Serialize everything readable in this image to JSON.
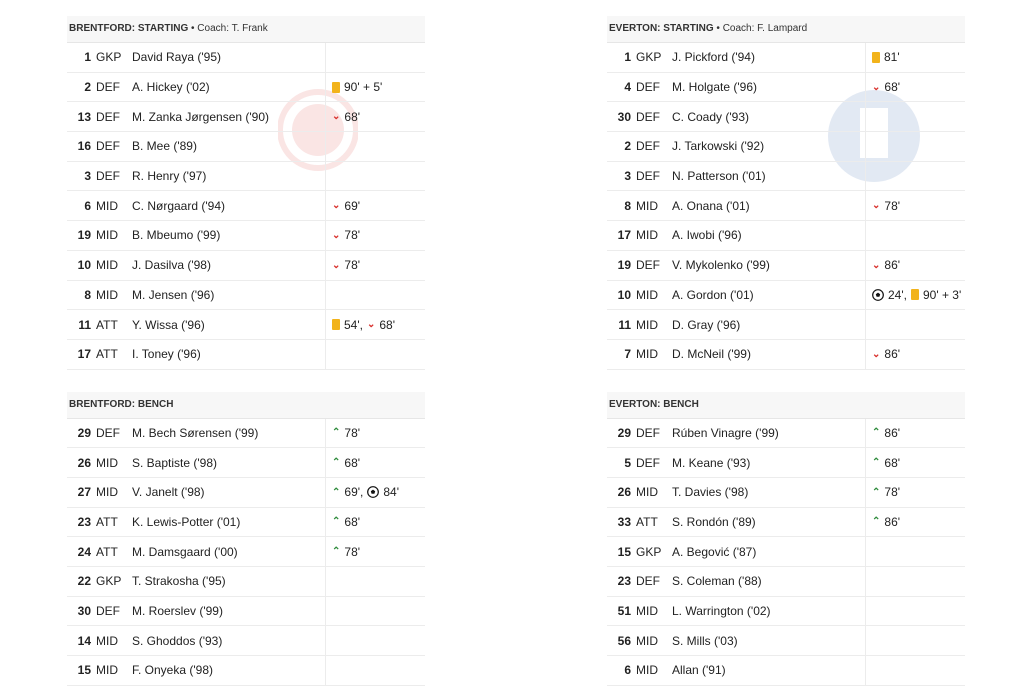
{
  "home": {
    "starting_title": "BRENTFORD: STARTING",
    "coach": "• Coach: T. Frank",
    "bench_title": "BRENTFORD: BENCH",
    "starting": [
      {
        "num": "1",
        "pos": "GKP",
        "name": "David Raya ('95)",
        "events": []
      },
      {
        "num": "2",
        "pos": "DEF",
        "name": "A. Hickey ('02)",
        "events": [
          {
            "type": "yellow",
            "text": "90' + 5'"
          }
        ]
      },
      {
        "num": "13",
        "pos": "DEF",
        "name": "M. Zanka Jørgensen ('90)",
        "events": [
          {
            "type": "sub-off",
            "text": "68'"
          }
        ]
      },
      {
        "num": "16",
        "pos": "DEF",
        "name": "B. Mee ('89)",
        "events": []
      },
      {
        "num": "3",
        "pos": "DEF",
        "name": "R. Henry ('97)",
        "events": []
      },
      {
        "num": "6",
        "pos": "MID",
        "name": "C. Nørgaard ('94)",
        "events": [
          {
            "type": "sub-off",
            "text": "69'"
          }
        ]
      },
      {
        "num": "19",
        "pos": "MID",
        "name": "B. Mbeumo ('99)",
        "events": [
          {
            "type": "sub-off",
            "text": "78'"
          }
        ]
      },
      {
        "num": "10",
        "pos": "MID",
        "name": "J. Dasilva ('98)",
        "events": [
          {
            "type": "sub-off",
            "text": "78'"
          }
        ]
      },
      {
        "num": "8",
        "pos": "MID",
        "name": "M. Jensen ('96)",
        "events": []
      },
      {
        "num": "11",
        "pos": "ATT",
        "name": "Y. Wissa ('96)",
        "events": [
          {
            "type": "yellow",
            "text": "54',"
          },
          {
            "type": "sub-off",
            "text": "68'"
          }
        ]
      },
      {
        "num": "17",
        "pos": "ATT",
        "name": "I. Toney ('96)",
        "events": []
      }
    ],
    "bench": [
      {
        "num": "29",
        "pos": "DEF",
        "name": "M. Bech Sørensen ('99)",
        "events": [
          {
            "type": "sub-on",
            "text": "78'"
          }
        ]
      },
      {
        "num": "26",
        "pos": "MID",
        "name": "S. Baptiste ('98)",
        "events": [
          {
            "type": "sub-on",
            "text": "68'"
          }
        ]
      },
      {
        "num": "27",
        "pos": "MID",
        "name": "V. Janelt ('98)",
        "events": [
          {
            "type": "sub-on",
            "text": "69',"
          },
          {
            "type": "goal",
            "text": "84'"
          }
        ]
      },
      {
        "num": "23",
        "pos": "ATT",
        "name": "K. Lewis-Potter ('01)",
        "events": [
          {
            "type": "sub-on",
            "text": "68'"
          }
        ]
      },
      {
        "num": "24",
        "pos": "ATT",
        "name": "M. Damsgaard ('00)",
        "events": [
          {
            "type": "sub-on",
            "text": "78'"
          }
        ]
      },
      {
        "num": "22",
        "pos": "GKP",
        "name": "T. Strakosha ('95)",
        "events": []
      },
      {
        "num": "30",
        "pos": "DEF",
        "name": "M. Roerslev ('99)",
        "events": []
      },
      {
        "num": "14",
        "pos": "MID",
        "name": "S. Ghoddos ('93)",
        "events": []
      },
      {
        "num": "15",
        "pos": "MID",
        "name": "F. Onyeka ('98)",
        "events": []
      }
    ]
  },
  "away": {
    "starting_title": "EVERTON: STARTING",
    "coach": "• Coach: F. Lampard",
    "bench_title": "EVERTON: BENCH",
    "starting": [
      {
        "num": "1",
        "pos": "GKP",
        "name": "J. Pickford ('94)",
        "events": [
          {
            "type": "yellow",
            "text": "81'"
          }
        ]
      },
      {
        "num": "4",
        "pos": "DEF",
        "name": "M. Holgate ('96)",
        "events": [
          {
            "type": "sub-off",
            "text": "68'"
          }
        ]
      },
      {
        "num": "30",
        "pos": "DEF",
        "name": "C. Coady ('93)",
        "events": []
      },
      {
        "num": "2",
        "pos": "DEF",
        "name": "J. Tarkowski ('92)",
        "events": []
      },
      {
        "num": "3",
        "pos": "DEF",
        "name": "N. Patterson ('01)",
        "events": []
      },
      {
        "num": "8",
        "pos": "MID",
        "name": "A. Onana ('01)",
        "events": [
          {
            "type": "sub-off",
            "text": "78'"
          }
        ]
      },
      {
        "num": "17",
        "pos": "MID",
        "name": "A. Iwobi ('96)",
        "events": []
      },
      {
        "num": "19",
        "pos": "DEF",
        "name": "V. Mykolenko ('99)",
        "events": [
          {
            "type": "sub-off",
            "text": "86'"
          }
        ]
      },
      {
        "num": "10",
        "pos": "MID",
        "name": "A. Gordon ('01)",
        "events": [
          {
            "type": "goal",
            "text": "24',"
          },
          {
            "type": "yellow",
            "text": "90' + 3'"
          }
        ]
      },
      {
        "num": "11",
        "pos": "MID",
        "name": "D. Gray ('96)",
        "events": []
      },
      {
        "num": "7",
        "pos": "MID",
        "name": "D. McNeil ('99)",
        "events": [
          {
            "type": "sub-off",
            "text": "86'"
          }
        ]
      }
    ],
    "bench": [
      {
        "num": "29",
        "pos": "DEF",
        "name": "Rúben Vinagre ('99)",
        "events": [
          {
            "type": "sub-on",
            "text": "86'"
          }
        ]
      },
      {
        "num": "5",
        "pos": "DEF",
        "name": "M. Keane ('93)",
        "events": [
          {
            "type": "sub-on",
            "text": "68'"
          }
        ]
      },
      {
        "num": "26",
        "pos": "MID",
        "name": "T. Davies ('98)",
        "events": [
          {
            "type": "sub-on",
            "text": "78'"
          }
        ]
      },
      {
        "num": "33",
        "pos": "ATT",
        "name": "S. Rondón ('89)",
        "events": [
          {
            "type": "sub-on",
            "text": "86'"
          }
        ]
      },
      {
        "num": "15",
        "pos": "GKP",
        "name": "A. Begović ('87)",
        "events": []
      },
      {
        "num": "23",
        "pos": "DEF",
        "name": "S. Coleman ('88)",
        "events": []
      },
      {
        "num": "51",
        "pos": "MID",
        "name": "L. Warrington ('02)",
        "events": []
      },
      {
        "num": "56",
        "pos": "MID",
        "name": "S. Mills ('03)",
        "events": []
      },
      {
        "num": "6",
        "pos": "MID",
        "name": "Allan ('91)",
        "events": []
      }
    ]
  },
  "colors": {
    "yellow_card": "#f2b31b",
    "sub_off": "#d9302c",
    "sub_on": "#2e8b3b"
  },
  "icons": {
    "yellow": "yellow-card-icon",
    "sub-off": "sub-off-arrow-icon",
    "sub-on": "sub-on-arrow-icon",
    "goal": "football-icon"
  }
}
